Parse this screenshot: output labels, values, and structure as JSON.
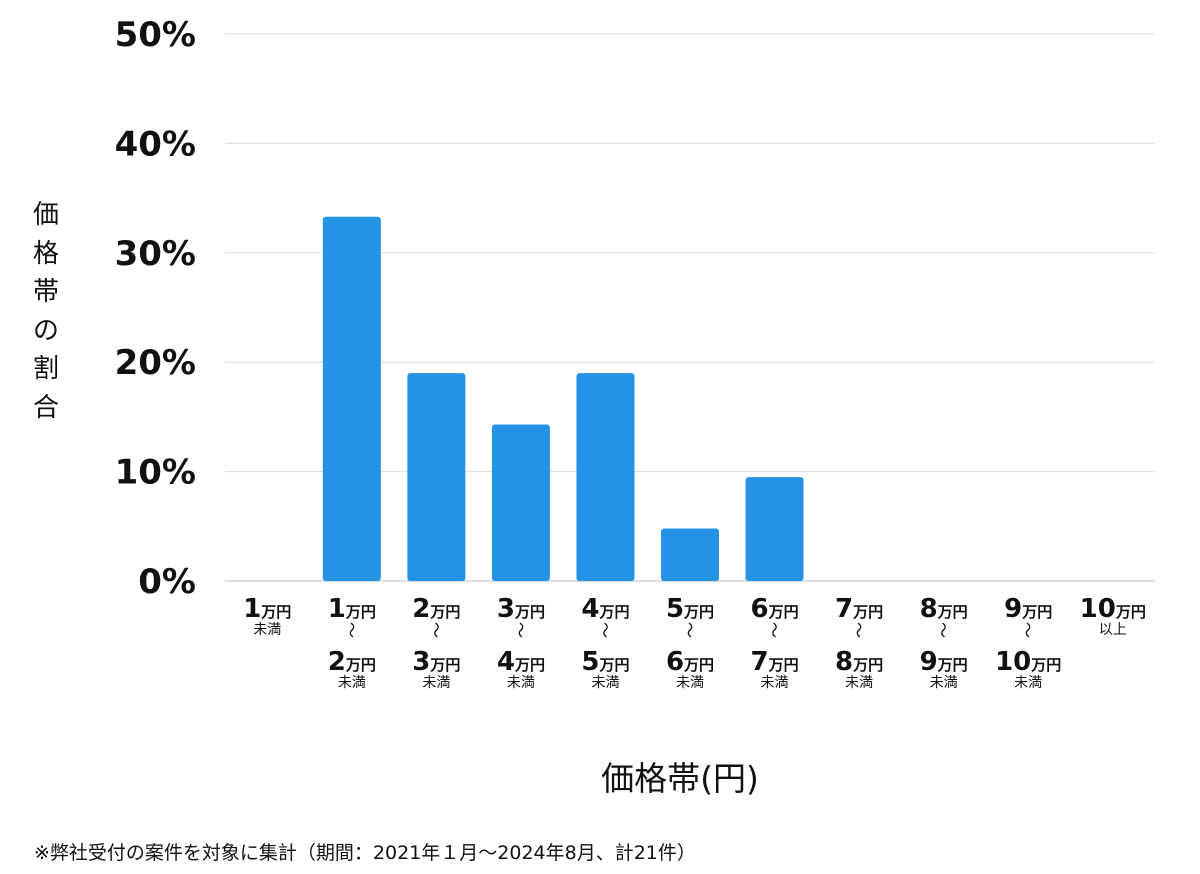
{
  "chart_data": {
    "type": "bar",
    "ylabel": "価格帯の割合",
    "xlabel": "価格帯(円)",
    "ylim": [
      0,
      50
    ],
    "yticks": [
      "0%",
      "10%",
      "20%",
      "30%",
      "40%",
      "50%"
    ],
    "grid": true,
    "color": "#2493e6",
    "categories": [
      {
        "lines": [
          "1万円",
          "未満"
        ]
      },
      {
        "lines": [
          "1万円",
          "～",
          "2万円",
          "未満"
        ]
      },
      {
        "lines": [
          "2万円",
          "～",
          "3万円",
          "未満"
        ]
      },
      {
        "lines": [
          "3万円",
          "～",
          "4万円",
          "未満"
        ]
      },
      {
        "lines": [
          "4万円",
          "～",
          "5万円",
          "未満"
        ]
      },
      {
        "lines": [
          "5万円",
          "～",
          "6万円",
          "未満"
        ]
      },
      {
        "lines": [
          "6万円",
          "～",
          "7万円",
          "未満"
        ]
      },
      {
        "lines": [
          "7万円",
          "～",
          "8万円",
          "未満"
        ]
      },
      {
        "lines": [
          "8万円",
          "～",
          "9万円",
          "未満"
        ]
      },
      {
        "lines": [
          "9万円",
          "～",
          "10万円",
          "未満"
        ]
      },
      {
        "lines": [
          "10万円",
          "以上"
        ]
      }
    ],
    "values": [
      0,
      33.3,
      19.0,
      14.3,
      19.0,
      4.8,
      9.5,
      0,
      0,
      0,
      0
    ]
  },
  "footnote": "※弊社受付の案件を対象に集計（期間：2021年１月～2024年8月、計21件）"
}
